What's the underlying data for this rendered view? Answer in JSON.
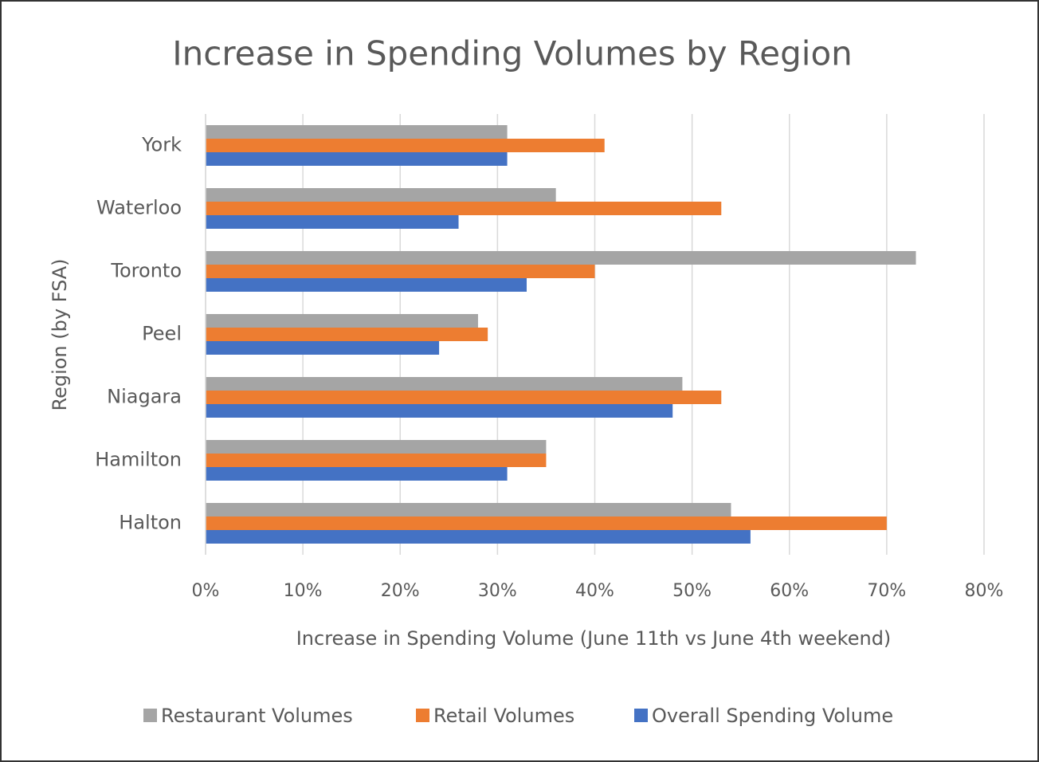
{
  "chart_data": {
    "type": "bar",
    "orientation": "horizontal",
    "title": "Increase in Spending Volumes by Region",
    "x_label": "Increase in Spending Volume (June 11th vs June 4th weekend)",
    "y_label": "Region (by FSA)",
    "categories": [
      "York",
      "Waterloo",
      "Toronto",
      "Peel",
      "Niagara",
      "Hamilton",
      "Halton"
    ],
    "series": [
      {
        "name": "Restaurant Volumes",
        "color": "#a5a5a5",
        "values": [
          31,
          36,
          73,
          28,
          49,
          35,
          54
        ]
      },
      {
        "name": "Retail Volumes",
        "color": "#ed7d31",
        "values": [
          41,
          53,
          40,
          29,
          53,
          35,
          70
        ]
      },
      {
        "name": "Overall Spending Volume",
        "color": "#4472c4",
        "values": [
          31,
          26,
          33,
          24,
          48,
          31,
          56
        ]
      }
    ],
    "xlim": [
      0,
      80
    ],
    "xticks": [
      {
        "value": 0,
        "label": "0%"
      },
      {
        "value": 10,
        "label": "10%"
      },
      {
        "value": 20,
        "label": "20%"
      },
      {
        "value": 30,
        "label": "30%"
      },
      {
        "value": 40,
        "label": "40%"
      },
      {
        "value": 50,
        "label": "50%"
      },
      {
        "value": 60,
        "label": "60%"
      },
      {
        "value": 70,
        "label": "70%"
      },
      {
        "value": 80,
        "label": "80%"
      }
    ],
    "grid": true,
    "legend": "bottom"
  }
}
